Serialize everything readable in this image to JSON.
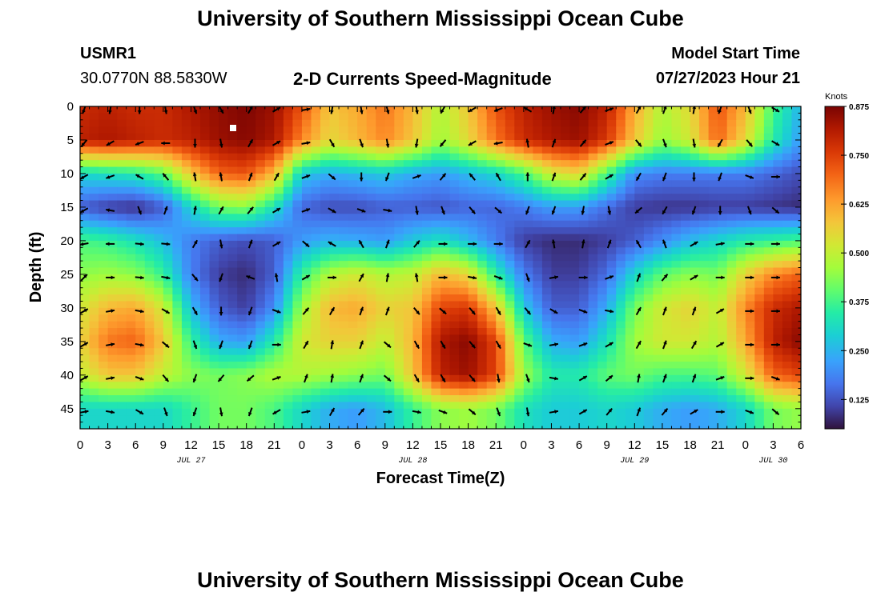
{
  "header": {
    "title": "University of Southern Mississippi Ocean Cube",
    "station_id": "USMR1",
    "station_coords": "30.0770N  88.5830W",
    "plot_title": "2-D Currents Speed-Magnitude",
    "model_start_label": "Model Start Time",
    "model_start_value": "07/27/2023 Hour 21"
  },
  "footer": {
    "title": "University of Southern Mississippi Ocean Cube"
  },
  "chart_data": {
    "type": "heatmap",
    "title": "2-D Currents Speed-Magnitude",
    "xlabel": "Forecast Time(Z)",
    "ylabel": "Depth (ft)",
    "x_unit": "hours since JUL 27 00Z",
    "xlim": [
      0,
      78
    ],
    "ylim": [
      0,
      48
    ],
    "y_inverted": true,
    "x_tick_labels": [
      "0",
      "3",
      "6",
      "9",
      "12",
      "15",
      "18",
      "21",
      "0",
      "3",
      "6",
      "9",
      "12",
      "15",
      "18",
      "21",
      "0",
      "3",
      "6",
      "9",
      "12",
      "15",
      "18",
      "21",
      "0",
      "3",
      "6"
    ],
    "date_labels": [
      {
        "label": "JUL 27",
        "hour": 12
      },
      {
        "label": "JUL 28",
        "hour": 36
      },
      {
        "label": "JUL 29",
        "hour": 60
      },
      {
        "label": "JUL 30",
        "hour": 75
      }
    ],
    "y_ticks": [
      0,
      5,
      10,
      15,
      20,
      25,
      30,
      35,
      40,
      45
    ],
    "colorbar": {
      "title": "Knots",
      "min": 0.05,
      "max": 0.875,
      "tick_labels": [
        "0.875",
        "0.750",
        "0.625",
        "0.500",
        "0.375",
        "0.250",
        "0.125"
      ],
      "tick_values": [
        0.875,
        0.75,
        0.625,
        0.5,
        0.375,
        0.25,
        0.125
      ]
    },
    "depths": [
      0,
      5,
      10,
      15,
      20,
      25,
      30,
      35,
      40,
      45
    ],
    "times": [
      0,
      3,
      6,
      9,
      12,
      15,
      18,
      21,
      24,
      27,
      30,
      33,
      36,
      39,
      42,
      45,
      48,
      51,
      54,
      57,
      60,
      63,
      66,
      69,
      72,
      75,
      78
    ],
    "speed_knots": [
      [
        0.78,
        0.8,
        0.78,
        0.78,
        0.82,
        0.85,
        0.87,
        0.84,
        0.72,
        0.58,
        0.62,
        0.68,
        0.6,
        0.48,
        0.58,
        0.72,
        0.8,
        0.84,
        0.86,
        0.8,
        0.62,
        0.48,
        0.55,
        0.72,
        0.6,
        0.38,
        0.25
      ],
      [
        0.8,
        0.82,
        0.8,
        0.78,
        0.8,
        0.84,
        0.86,
        0.82,
        0.66,
        0.55,
        0.6,
        0.66,
        0.58,
        0.46,
        0.55,
        0.68,
        0.78,
        0.82,
        0.84,
        0.76,
        0.58,
        0.45,
        0.52,
        0.7,
        0.55,
        0.34,
        0.22
      ],
      [
        0.3,
        0.32,
        0.34,
        0.4,
        0.58,
        0.7,
        0.72,
        0.6,
        0.28,
        0.24,
        0.26,
        0.28,
        0.24,
        0.22,
        0.26,
        0.3,
        0.38,
        0.52,
        0.56,
        0.38,
        0.2,
        0.18,
        0.18,
        0.18,
        0.18,
        0.15,
        0.12
      ],
      [
        0.14,
        0.1,
        0.08,
        0.14,
        0.3,
        0.42,
        0.44,
        0.32,
        0.15,
        0.12,
        0.12,
        0.14,
        0.14,
        0.13,
        0.15,
        0.15,
        0.18,
        0.22,
        0.22,
        0.16,
        0.1,
        0.09,
        0.09,
        0.1,
        0.1,
        0.09,
        0.08
      ],
      [
        0.38,
        0.36,
        0.32,
        0.26,
        0.18,
        0.14,
        0.12,
        0.14,
        0.22,
        0.25,
        0.24,
        0.22,
        0.28,
        0.32,
        0.26,
        0.18,
        0.1,
        0.08,
        0.08,
        0.1,
        0.14,
        0.2,
        0.26,
        0.3,
        0.34,
        0.36,
        0.38
      ],
      [
        0.44,
        0.46,
        0.44,
        0.36,
        0.18,
        0.1,
        0.08,
        0.14,
        0.36,
        0.48,
        0.52,
        0.48,
        0.5,
        0.6,
        0.55,
        0.35,
        0.18,
        0.1,
        0.1,
        0.16,
        0.3,
        0.4,
        0.44,
        0.42,
        0.56,
        0.66,
        0.7
      ],
      [
        0.52,
        0.6,
        0.62,
        0.52,
        0.26,
        0.14,
        0.1,
        0.2,
        0.46,
        0.6,
        0.62,
        0.56,
        0.58,
        0.74,
        0.76,
        0.58,
        0.28,
        0.14,
        0.14,
        0.24,
        0.42,
        0.52,
        0.56,
        0.5,
        0.66,
        0.78,
        0.82
      ],
      [
        0.56,
        0.68,
        0.7,
        0.58,
        0.36,
        0.24,
        0.22,
        0.34,
        0.52,
        0.56,
        0.56,
        0.5,
        0.6,
        0.82,
        0.86,
        0.74,
        0.4,
        0.24,
        0.22,
        0.32,
        0.46,
        0.52,
        0.52,
        0.48,
        0.62,
        0.8,
        0.86
      ],
      [
        0.5,
        0.58,
        0.58,
        0.5,
        0.44,
        0.42,
        0.44,
        0.48,
        0.48,
        0.46,
        0.44,
        0.42,
        0.58,
        0.8,
        0.84,
        0.74,
        0.46,
        0.34,
        0.34,
        0.4,
        0.42,
        0.38,
        0.38,
        0.4,
        0.52,
        0.7,
        0.74
      ],
      [
        0.3,
        0.3,
        0.3,
        0.3,
        0.36,
        0.42,
        0.42,
        0.38,
        0.3,
        0.24,
        0.22,
        0.26,
        0.36,
        0.44,
        0.46,
        0.42,
        0.32,
        0.28,
        0.28,
        0.3,
        0.28,
        0.24,
        0.22,
        0.24,
        0.3,
        0.42,
        0.45
      ]
    ],
    "direction_deg": [
      [
        200,
        190,
        180,
        170,
        160,
        150,
        30,
        60,
        80,
        190,
        170,
        165,
        170,
        210,
        240,
        250,
        300,
        10,
        40,
        70,
        30,
        20,
        10,
        200,
        160,
        120,
        130
      ],
      [
        220,
        240,
        250,
        270,
        180,
        170,
        30,
        60,
        80,
        150,
        160,
        170,
        190,
        220,
        240,
        260,
        350,
        20,
        40,
        70,
        140,
        160,
        170,
        210,
        140,
        120,
        110
      ],
      [
        240,
        250,
        300,
        320,
        350,
        350,
        20,
        30,
        70,
        130,
        180,
        200,
        70,
        40,
        320,
        330,
        0,
        20,
        40,
        60,
        210,
        200,
        180,
        200,
        110,
        90,
        80
      ],
      [
        240,
        280,
        160,
        20,
        10,
        30,
        40,
        60,
        70,
        120,
        110,
        100,
        170,
        160,
        140,
        130,
        200,
        200,
        190,
        170,
        230,
        210,
        200,
        180,
        160,
        130,
        120
      ],
      [
        260,
        270,
        95,
        95,
        30,
        170,
        20,
        60,
        130,
        300,
        330,
        20,
        40,
        90,
        90,
        90,
        30,
        350,
        10,
        20,
        330,
        340,
        60,
        80,
        90,
        90,
        90
      ],
      [
        45,
        90,
        95,
        100,
        140,
        200,
        290,
        350,
        60,
        90,
        30,
        10,
        350,
        90,
        100,
        110,
        160,
        80,
        90,
        70,
        20,
        40,
        60,
        90,
        90,
        90,
        90
      ],
      [
        60,
        80,
        100,
        120,
        150,
        180,
        200,
        110,
        40,
        30,
        20,
        20,
        140,
        130,
        140,
        150,
        140,
        120,
        110,
        100,
        30,
        20,
        20,
        60,
        90,
        90,
        90
      ],
      [
        60,
        80,
        100,
        130,
        160,
        200,
        200,
        90,
        30,
        10,
        20,
        130,
        150,
        150,
        140,
        150,
        110,
        80,
        70,
        60,
        30,
        20,
        30,
        60,
        90,
        90,
        90
      ],
      [
        60,
        80,
        110,
        140,
        200,
        220,
        230,
        70,
        20,
        10,
        20,
        130,
        150,
        150,
        140,
        170,
        160,
        100,
        60,
        50,
        10,
        20,
        20,
        70,
        90,
        110,
        120
      ],
      [
        80,
        100,
        120,
        160,
        200,
        170,
        200,
        240,
        80,
        30,
        40,
        90,
        100,
        110,
        130,
        160,
        170,
        80,
        60,
        40,
        20,
        40,
        60,
        90,
        110,
        130,
        140
      ]
    ]
  }
}
